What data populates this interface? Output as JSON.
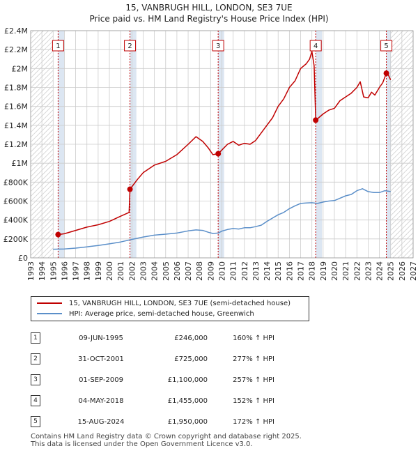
{
  "title": "15, VANBRUGH HILL, LONDON, SE3 7UE",
  "subtitle": "Price paid vs. HM Land Registry's House Price Index (HPI)",
  "colors": {
    "property": "#c00000",
    "hpi": "#5b8fc9",
    "band": "#dce6f2",
    "grid": "#cccccc"
  },
  "chart_data": {
    "type": "line",
    "xlim": [
      1993,
      2027
    ],
    "ylim": [
      0,
      2400000
    ],
    "x_ticks": [
      1993,
      1994,
      1995,
      1996,
      1997,
      1998,
      1999,
      2000,
      2001,
      2002,
      2003,
      2004,
      2005,
      2006,
      2007,
      2008,
      2009,
      2010,
      2011,
      2012,
      2013,
      2014,
      2015,
      2016,
      2017,
      2018,
      2019,
      2020,
      2021,
      2022,
      2023,
      2024,
      2025,
      2026,
      2027
    ],
    "y_ticks": [
      {
        "value": 0,
        "label": "£0"
      },
      {
        "value": 200000,
        "label": "£200K"
      },
      {
        "value": 400000,
        "label": "£400K"
      },
      {
        "value": 600000,
        "label": "£600K"
      },
      {
        "value": 800000,
        "label": "£800K"
      },
      {
        "value": 1000000,
        "label": "£1M"
      },
      {
        "value": 1200000,
        "label": "£1.2M"
      },
      {
        "value": 1400000,
        "label": "£1.4M"
      },
      {
        "value": 1600000,
        "label": "£1.6M"
      },
      {
        "value": 1800000,
        "label": "£1.8M"
      },
      {
        "value": 2000000,
        "label": "£2M"
      },
      {
        "value": 2200000,
        "label": "£2.2M"
      },
      {
        "value": 2400000,
        "label": "£2.4M"
      }
    ],
    "hatch_before": 1995.0,
    "hatch_after": 2025.0,
    "sales": [
      {
        "n": "1",
        "t": 1995.44,
        "price": 246000
      },
      {
        "n": "2",
        "t": 2001.83,
        "price": 725000
      },
      {
        "n": "3",
        "t": 2009.67,
        "price": 1100000
      },
      {
        "n": "4",
        "t": 2018.34,
        "price": 1455000
      },
      {
        "n": "5",
        "t": 2024.62,
        "price": 1950000
      }
    ],
    "series": [
      {
        "name": "15, VANBRUGH HILL, LONDON, SE3 7UE (semi-detached house)",
        "x": [
          1995.44,
          1996.0,
          1997.0,
          1998.0,
          1999.0,
          2000.0,
          2001.0,
          2001.75,
          2001.83,
          2002.5,
          2003.0,
          2004.0,
          2005.0,
          2006.0,
          2007.0,
          2007.7,
          2008.3,
          2008.8,
          2009.2,
          2009.67,
          2010.0,
          2010.5,
          2011.0,
          2011.5,
          2012.0,
          2012.5,
          2013.0,
          2013.5,
          2014.0,
          2014.5,
          2015.0,
          2015.5,
          2016.0,
          2016.5,
          2017.0,
          2017.5,
          2017.8,
          2018.0,
          2018.2,
          2018.34,
          2018.6,
          2019.0,
          2019.5,
          2020.0,
          2020.5,
          2021.0,
          2021.5,
          2022.0,
          2022.3,
          2022.6,
          2023.0,
          2023.3,
          2023.6,
          2024.0,
          2024.3,
          2024.62,
          2024.8,
          2025.0
        ],
        "y": [
          246000,
          255000,
          290000,
          325000,
          350000,
          385000,
          440000,
          480000,
          725000,
          830000,
          900000,
          980000,
          1020000,
          1090000,
          1200000,
          1280000,
          1230000,
          1160000,
          1090000,
          1100000,
          1140000,
          1200000,
          1230000,
          1190000,
          1210000,
          1200000,
          1240000,
          1320000,
          1400000,
          1480000,
          1600000,
          1680000,
          1800000,
          1870000,
          2000000,
          2050000,
          2100000,
          2180000,
          2030000,
          1455000,
          1480000,
          1520000,
          1560000,
          1580000,
          1660000,
          1700000,
          1740000,
          1800000,
          1860000,
          1700000,
          1690000,
          1750000,
          1720000,
          1800000,
          1850000,
          1950000,
          1930000,
          1880000
        ]
      },
      {
        "name": "HPI: Average price, semi-detached house, Greenwich",
        "x": [
          1995.0,
          1996.0,
          1997.0,
          1998.0,
          1999.0,
          2000.0,
          2001.0,
          2002.0,
          2003.0,
          2004.0,
          2005.0,
          2006.0,
          2007.0,
          2007.7,
          2008.3,
          2008.8,
          2009.2,
          2009.67,
          2010.0,
          2010.5,
          2011.0,
          2011.5,
          2012.0,
          2012.5,
          2013.0,
          2013.5,
          2014.0,
          2014.5,
          2015.0,
          2015.5,
          2016.0,
          2016.5,
          2017.0,
          2017.5,
          2018.0,
          2018.5,
          2019.0,
          2019.5,
          2020.0,
          2020.5,
          2021.0,
          2021.5,
          2022.0,
          2022.5,
          2023.0,
          2023.5,
          2024.0,
          2024.5,
          2025.0
        ],
        "y": [
          91000,
          94000,
          103000,
          116000,
          130000,
          148000,
          168000,
          195000,
          220000,
          240000,
          250000,
          262000,
          285000,
          295000,
          290000,
          270000,
          258000,
          262000,
          283000,
          300000,
          310000,
          305000,
          318000,
          318000,
          330000,
          345000,
          385000,
          420000,
          455000,
          480000,
          520000,
          550000,
          575000,
          580000,
          582000,
          575000,
          590000,
          600000,
          605000,
          630000,
          655000,
          670000,
          710000,
          730000,
          700000,
          690000,
          690000,
          710000,
          700000
        ]
      }
    ]
  },
  "legend": {
    "property": "15, VANBRUGH HILL, LONDON, SE3 7UE (semi-detached house)",
    "hpi": "HPI: Average price, semi-detached house, Greenwich"
  },
  "table": [
    {
      "n": "1",
      "date": "09-JUN-1995",
      "price": "£246,000",
      "hpi": "160% ↑ HPI"
    },
    {
      "n": "2",
      "date": "31-OCT-2001",
      "price": "£725,000",
      "hpi": "277% ↑ HPI"
    },
    {
      "n": "3",
      "date": "01-SEP-2009",
      "price": "£1,100,000",
      "hpi": "257% ↑ HPI"
    },
    {
      "n": "4",
      "date": "04-MAY-2018",
      "price": "£1,455,000",
      "hpi": "152% ↑ HPI"
    },
    {
      "n": "5",
      "date": "15-AUG-2024",
      "price": "£1,950,000",
      "hpi": "172% ↑ HPI"
    }
  ],
  "footer": {
    "line1": "Contains HM Land Registry data © Crown copyright and database right 2025.",
    "line2": "This data is licensed under the Open Government Licence v3.0."
  }
}
